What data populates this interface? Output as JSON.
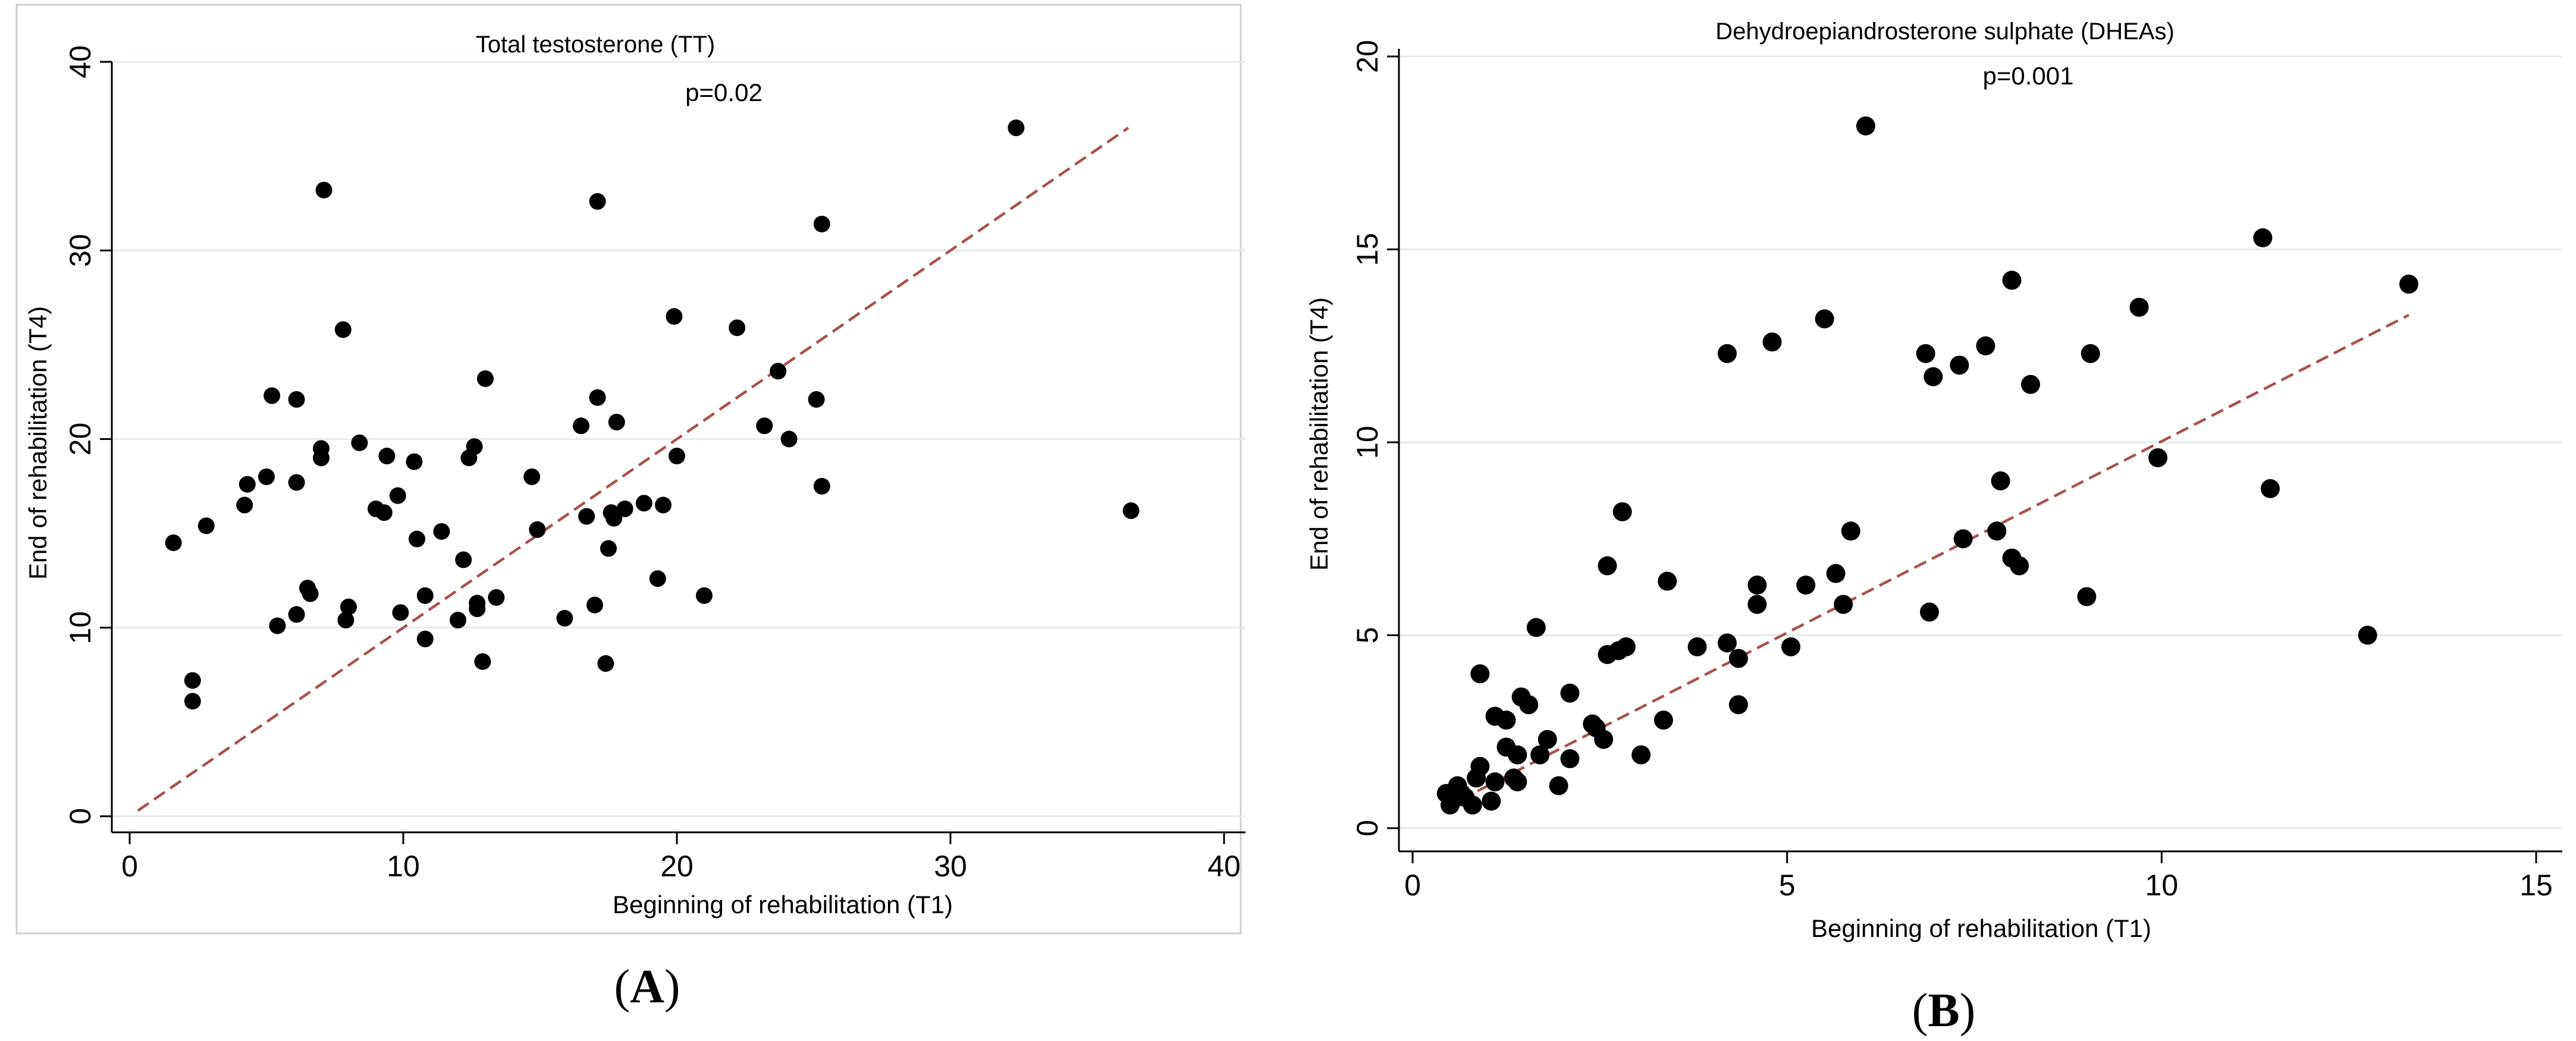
{
  "chart_data": [
    {
      "type": "scatter",
      "panel_label": "A",
      "title": "Total testosterone (TT)",
      "annotation": "p=0.02",
      "xlabel": "Beginning of rehabilitation (T1)",
      "ylabel": "End of rehabilitation (T4)",
      "xlim": [
        0,
        40
      ],
      "ylim": [
        0,
        40
      ],
      "xticks": [
        0,
        10,
        20,
        30,
        40
      ],
      "yticks": [
        0,
        10,
        20,
        30,
        40
      ],
      "fit_line": [
        [
          0.3,
          0.3
        ],
        [
          36.5,
          36.5
        ]
      ],
      "points": [
        [
          1.6,
          14.5
        ],
        [
          2.3,
          7.2
        ],
        [
          2.3,
          6.1
        ],
        [
          2.8,
          15.4
        ],
        [
          4.2,
          16.5
        ],
        [
          4.3,
          17.6
        ],
        [
          5.0,
          18.0
        ],
        [
          5.2,
          22.3
        ],
        [
          5.4,
          10.1
        ],
        [
          6.1,
          17.7
        ],
        [
          6.1,
          10.7
        ],
        [
          6.1,
          22.1
        ],
        [
          6.5,
          12.1
        ],
        [
          6.6,
          11.8
        ],
        [
          7.0,
          19.5
        ],
        [
          7.0,
          19.0
        ],
        [
          7.1,
          33.2
        ],
        [
          7.8,
          25.8
        ],
        [
          7.9,
          10.4
        ],
        [
          8.0,
          11.1
        ],
        [
          8.4,
          19.8
        ],
        [
          9.0,
          16.3
        ],
        [
          9.3,
          16.1
        ],
        [
          9.4,
          19.1
        ],
        [
          9.8,
          17.0
        ],
        [
          9.9,
          10.8
        ],
        [
          10.4,
          18.8
        ],
        [
          10.5,
          14.7
        ],
        [
          10.8,
          9.4
        ],
        [
          10.8,
          11.7
        ],
        [
          11.4,
          15.1
        ],
        [
          12.0,
          10.4
        ],
        [
          12.2,
          13.6
        ],
        [
          12.4,
          19.0
        ],
        [
          12.6,
          19.6
        ],
        [
          12.7,
          11.0
        ],
        [
          12.7,
          11.3
        ],
        [
          12.9,
          8.2
        ],
        [
          13.0,
          23.2
        ],
        [
          13.4,
          11.6
        ],
        [
          14.7,
          18.0
        ],
        [
          14.9,
          15.2
        ],
        [
          15.9,
          10.5
        ],
        [
          16.5,
          20.7
        ],
        [
          16.7,
          15.9
        ],
        [
          17.0,
          11.2
        ],
        [
          17.1,
          22.2
        ],
        [
          17.1,
          32.6
        ],
        [
          17.4,
          8.1
        ],
        [
          17.5,
          14.2
        ],
        [
          17.6,
          16.1
        ],
        [
          17.7,
          15.8
        ],
        [
          17.8,
          20.9
        ],
        [
          18.1,
          16.3
        ],
        [
          18.8,
          16.6
        ],
        [
          19.3,
          12.6
        ],
        [
          19.5,
          16.5
        ],
        [
          19.9,
          26.5
        ],
        [
          20.0,
          19.1
        ],
        [
          21.0,
          11.7
        ],
        [
          22.2,
          25.9
        ],
        [
          23.2,
          20.7
        ],
        [
          23.7,
          23.6
        ],
        [
          24.1,
          20.0
        ],
        [
          25.1,
          22.1
        ],
        [
          25.3,
          17.5
        ],
        [
          25.3,
          31.4
        ],
        [
          32.4,
          36.5
        ],
        [
          36.6,
          16.2
        ]
      ]
    },
    {
      "type": "scatter",
      "panel_label": "B",
      "title": "Dehydroepiandrosterone sulphate (DHEAs)",
      "annotation": "p=0.001",
      "xlabel": "Beginning of rehabilitation (T1)",
      "ylabel": "End of rehabilitation (T4)",
      "xlim": [
        0,
        15
      ],
      "ylim": [
        0,
        20
      ],
      "xticks": [
        0,
        5,
        10,
        15
      ],
      "yticks": [
        0,
        5,
        10,
        15,
        20
      ],
      "fit_line": [
        [
          0.4,
          0.5
        ],
        [
          13.3,
          13.3
        ]
      ],
      "points": [
        [
          0.45,
          0.9
        ],
        [
          0.5,
          0.6
        ],
        [
          0.55,
          0.75
        ],
        [
          0.6,
          1.1
        ],
        [
          0.65,
          0.9
        ],
        [
          0.7,
          0.8
        ],
        [
          0.8,
          0.6
        ],
        [
          0.85,
          1.3
        ],
        [
          0.9,
          1.6
        ],
        [
          0.9,
          4.0
        ],
        [
          1.05,
          0.7
        ],
        [
          1.1,
          1.2
        ],
        [
          1.1,
          2.9
        ],
        [
          1.25,
          2.8
        ],
        [
          1.25,
          2.1
        ],
        [
          1.35,
          1.3
        ],
        [
          1.4,
          1.9
        ],
        [
          1.4,
          1.2
        ],
        [
          1.45,
          3.4
        ],
        [
          1.55,
          3.2
        ],
        [
          1.65,
          5.2
        ],
        [
          1.7,
          1.9
        ],
        [
          1.8,
          2.3
        ],
        [
          1.95,
          1.1
        ],
        [
          2.1,
          3.5
        ],
        [
          2.1,
          1.8
        ],
        [
          2.4,
          2.7
        ],
        [
          2.45,
          2.6
        ],
        [
          2.55,
          2.3
        ],
        [
          2.6,
          4.5
        ],
        [
          2.6,
          6.8
        ],
        [
          2.75,
          4.6
        ],
        [
          2.8,
          8.2
        ],
        [
          2.85,
          4.7
        ],
        [
          3.05,
          1.9
        ],
        [
          3.35,
          2.8
        ],
        [
          3.4,
          6.4
        ],
        [
          3.8,
          4.7
        ],
        [
          4.2,
          4.8
        ],
        [
          4.2,
          12.3
        ],
        [
          4.35,
          4.4
        ],
        [
          4.35,
          3.2
        ],
        [
          4.6,
          5.8
        ],
        [
          4.6,
          6.3
        ],
        [
          4.8,
          12.6
        ],
        [
          5.05,
          4.7
        ],
        [
          5.25,
          6.3
        ],
        [
          5.5,
          13.2
        ],
        [
          5.65,
          6.6
        ],
        [
          5.75,
          5.8
        ],
        [
          5.85,
          7.7
        ],
        [
          6.05,
          18.2
        ],
        [
          6.85,
          12.3
        ],
        [
          6.9,
          5.6
        ],
        [
          6.95,
          11.7
        ],
        [
          7.3,
          12.0
        ],
        [
          7.35,
          7.5
        ],
        [
          7.65,
          12.5
        ],
        [
          7.8,
          7.7
        ],
        [
          7.85,
          9.0
        ],
        [
          8.0,
          7.0
        ],
        [
          8.0,
          14.2
        ],
        [
          8.1,
          6.8
        ],
        [
          8.25,
          11.5
        ],
        [
          9.0,
          6.0
        ],
        [
          9.05,
          12.3
        ],
        [
          9.7,
          13.5
        ],
        [
          9.95,
          9.6
        ],
        [
          11.35,
          15.3
        ],
        [
          11.45,
          8.8
        ],
        [
          12.75,
          5.0
        ],
        [
          13.3,
          14.1
        ]
      ]
    }
  ]
}
